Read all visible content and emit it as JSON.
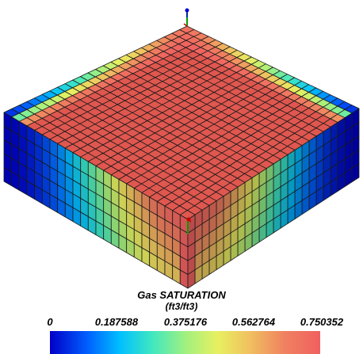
{
  "legend": {
    "title": "Gas SATURATION",
    "units": "(ft3/ft3)",
    "ticks": [
      "0",
      "0.187588",
      "0.375176",
      "0.562764",
      "0.750352"
    ],
    "range": [
      0,
      0.750352
    ],
    "colormap": [
      "#0000c8",
      "#0060ff",
      "#00c0ff",
      "#40e8c0",
      "#a0f080",
      "#e8f060",
      "#f0c060",
      "#f08060",
      "#f06060"
    ]
  },
  "grid": {
    "cells_i": 24,
    "cells_j": 24,
    "layers": 5,
    "saturation_plateau": 0.750352
  },
  "colors": {
    "top_surface": "#e0574f",
    "grid_line": "#1a1a1a",
    "axis_x": "#d00000",
    "axis_y": "#00a000",
    "axis_z": "#0000d0"
  }
}
